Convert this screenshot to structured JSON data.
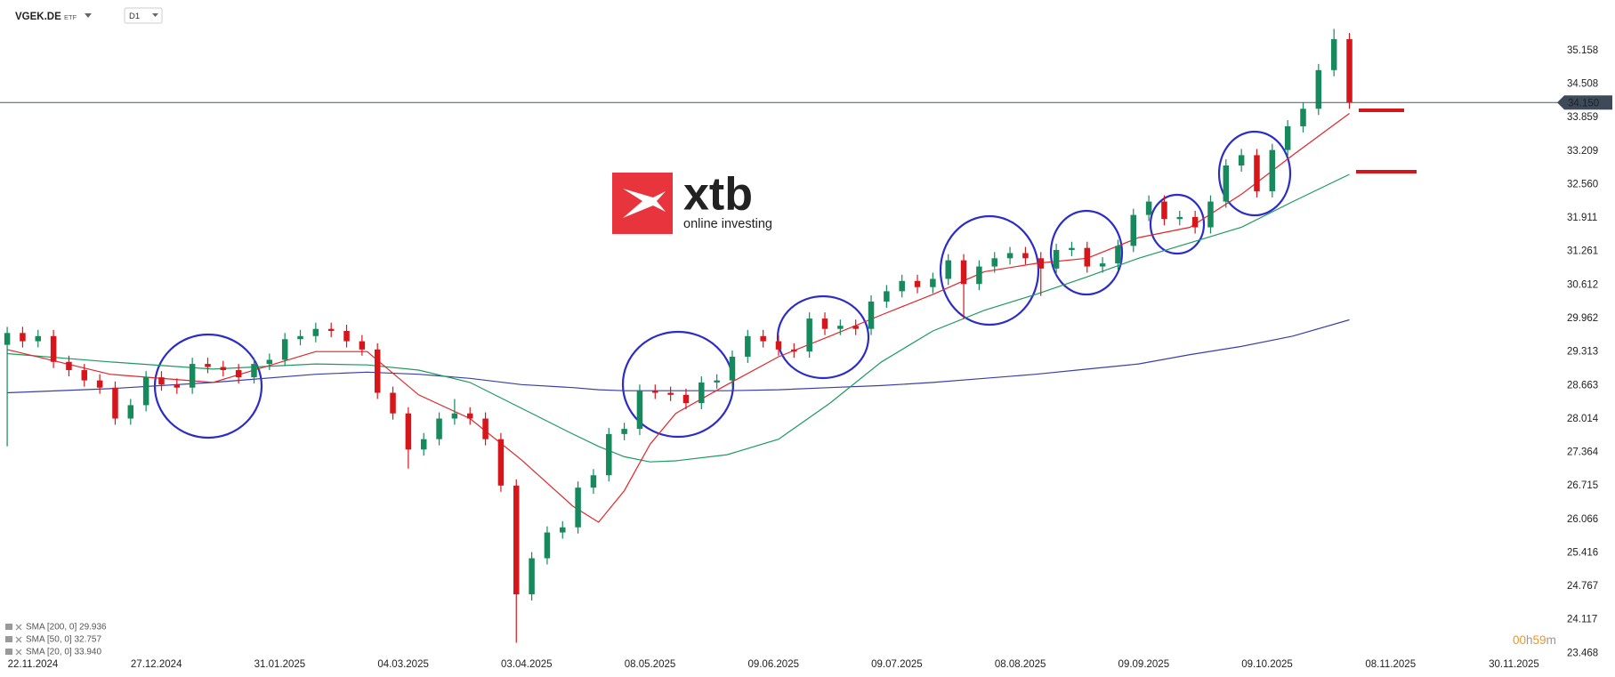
{
  "header": {
    "symbol": "VGEK.DE",
    "asset_class": "ETF",
    "interval": "D1"
  },
  "logo": {
    "brand": "xtb",
    "tagline": "online investing"
  },
  "timer": [
    "00",
    "h",
    "59",
    "m"
  ],
  "chart_data": {
    "type": "candlestick",
    "xlim": [
      -1.4,
      301.4
    ],
    "ylim": [
      23.11,
      36.14
    ],
    "xticks": [
      {
        "value": 5,
        "label": "22.11.2024"
      },
      {
        "value": 29,
        "label": "27.12.2024"
      },
      {
        "value": 53,
        "label": "31.01.2025"
      },
      {
        "value": 77,
        "label": "04.03.2025"
      },
      {
        "value": 101,
        "label": "03.04.2025"
      },
      {
        "value": 125,
        "label": "08.05.2025"
      },
      {
        "value": 149,
        "label": "09.06.2025"
      },
      {
        "value": 173,
        "label": "09.07.2025"
      },
      {
        "value": 197,
        "label": "08.08.2025"
      },
      {
        "value": 221,
        "label": "09.09.2025"
      },
      {
        "value": 245,
        "label": "09.10.2025"
      },
      {
        "value": 269,
        "label": "08.11.2025"
      },
      {
        "value": 293,
        "label": "30.11.2025"
      }
    ],
    "yticks": [
      35.158,
      34.508,
      33.859,
      33.209,
      {
        "value": 32.56,
        "label": "32.560"
      },
      31.911,
      31.261,
      30.612,
      29.962,
      29.313,
      28.663,
      28.014,
      27.364,
      26.715,
      26.066,
      25.416,
      24.767,
      24.117,
      23.468
    ],
    "grid": false,
    "current_price": {
      "value": 34.15,
      "label": "34.150"
    },
    "up_color": "#168a5c",
    "down_color": "#d7161c",
    "candles": {
      "x": [
        0,
        3,
        6,
        9,
        12,
        15,
        18,
        21,
        24,
        27,
        30,
        33,
        36,
        39,
        42,
        45,
        48,
        51,
        54,
        57,
        60,
        63,
        66,
        69,
        72,
        75,
        78,
        81,
        84,
        87,
        90,
        93,
        96,
        99,
        102,
        105,
        108,
        111,
        114,
        117,
        120,
        123,
        126,
        129,
        132,
        135,
        138,
        141,
        144,
        147,
        150,
        153,
        156,
        159,
        162,
        165,
        168,
        171,
        174,
        177,
        180,
        183,
        186,
        189,
        192,
        195,
        198,
        201,
        204,
        207,
        210,
        213,
        216,
        219,
        222,
        225,
        228,
        231,
        234,
        237,
        240,
        243,
        246,
        249,
        252,
        255,
        258,
        261
      ],
      "open": [
        29.45,
        29.68,
        29.52,
        29.62,
        29.12,
        28.96,
        28.76,
        28.62,
        28.02,
        28.28,
        28.82,
        28.68,
        28.62,
        29.08,
        29.02,
        28.96,
        28.82,
        29.08,
        29.16,
        29.56,
        29.62,
        29.76,
        29.72,
        29.52,
        29.36,
        28.52,
        28.12,
        27.42,
        27.62,
        28.02,
        28.12,
        28.02,
        27.62,
        26.72,
        24.61,
        25.31,
        25.81,
        25.91,
        26.68,
        26.92,
        27.72,
        27.82,
        28.56,
        28.52,
        28.48,
        28.32,
        28.72,
        28.76,
        29.22,
        29.62,
        29.52,
        29.36,
        29.32,
        29.96,
        29.76,
        29.82,
        29.76,
        30.29,
        30.49,
        30.69,
        30.57,
        30.73,
        31.09,
        30.63,
        30.97,
        31.13,
        31.23,
        31.13,
        30.93,
        31.29,
        31.33,
        30.97,
        31.03,
        31.37,
        31.97,
        32.23,
        31.89,
        31.93,
        31.73,
        32.23,
        32.93,
        33.13,
        32.43,
        33.23,
        33.69,
        34.03,
        34.78,
        35.38
      ],
      "high": [
        29.8,
        29.8,
        29.74,
        29.74,
        29.24,
        29.08,
        28.88,
        28.74,
        28.4,
        28.94,
        28.94,
        28.8,
        29.2,
        29.2,
        29.14,
        29.08,
        29.2,
        29.28,
        29.68,
        29.74,
        29.88,
        29.88,
        29.84,
        29.64,
        29.48,
        28.64,
        28.24,
        27.74,
        28.14,
        28.4,
        28.24,
        28.14,
        27.74,
        26.84,
        25.43,
        25.93,
        26.03,
        26.8,
        27.04,
        27.84,
        27.94,
        28.68,
        28.68,
        28.64,
        28.6,
        28.84,
        28.88,
        29.34,
        29.74,
        29.74,
        29.64,
        29.48,
        30.08,
        30.08,
        29.94,
        29.94,
        30.41,
        30.61,
        30.81,
        30.81,
        30.85,
        31.21,
        31.21,
        31.09,
        31.25,
        31.35,
        31.35,
        31.25,
        31.41,
        31.45,
        31.45,
        31.15,
        31.49,
        32.09,
        32.35,
        32.35,
        32.05,
        32.05,
        32.35,
        33.05,
        33.25,
        33.25,
        33.35,
        33.81,
        34.15,
        34.9,
        35.58,
        35.5
      ],
      "low": [
        27.48,
        29.4,
        29.4,
        29.0,
        28.84,
        28.64,
        28.5,
        27.9,
        27.9,
        28.16,
        28.56,
        28.5,
        28.5,
        28.9,
        28.84,
        28.7,
        28.7,
        28.96,
        29.04,
        29.44,
        29.5,
        29.6,
        29.4,
        29.24,
        28.4,
        28.0,
        27.05,
        27.3,
        27.5,
        27.9,
        27.9,
        27.5,
        26.6,
        23.67,
        24.49,
        25.19,
        25.69,
        25.79,
        26.56,
        26.8,
        27.6,
        27.7,
        28.4,
        28.36,
        28.2,
        28.2,
        28.6,
        28.64,
        29.1,
        29.4,
        29.24,
        29.2,
        29.2,
        29.64,
        29.64,
        29.64,
        29.64,
        30.17,
        30.37,
        30.45,
        30.45,
        30.61,
        29.95,
        30.51,
        30.85,
        31.01,
        31.01,
        30.4,
        30.81,
        31.17,
        30.85,
        30.85,
        30.91,
        31.25,
        31.85,
        31.77,
        31.77,
        31.61,
        31.61,
        32.11,
        32.81,
        32.31,
        32.31,
        33.11,
        33.57,
        33.91,
        34.66,
        34.03
      ],
      "close": [
        29.68,
        29.52,
        29.62,
        29.12,
        28.96,
        28.76,
        28.62,
        28.02,
        28.28,
        28.82,
        28.68,
        28.62,
        29.08,
        29.02,
        28.96,
        28.82,
        29.08,
        29.16,
        29.56,
        29.62,
        29.76,
        29.72,
        29.52,
        29.36,
        28.52,
        28.12,
        27.42,
        27.62,
        28.02,
        28.12,
        28.02,
        27.62,
        26.72,
        24.61,
        25.31,
        25.81,
        25.91,
        26.68,
        26.92,
        27.72,
        27.82,
        28.56,
        28.52,
        28.48,
        28.32,
        28.72,
        28.76,
        29.22,
        29.62,
        29.52,
        29.36,
        29.32,
        29.96,
        29.76,
        29.82,
        29.76,
        30.29,
        30.49,
        30.69,
        30.57,
        30.73,
        31.09,
        30.63,
        30.97,
        31.13,
        31.23,
        31.13,
        30.93,
        31.29,
        31.33,
        30.97,
        31.03,
        31.37,
        31.97,
        32.23,
        31.89,
        31.93,
        31.73,
        32.23,
        32.93,
        33.13,
        32.43,
        33.23,
        33.69,
        34.03,
        34.78,
        35.38,
        34.15
      ]
    },
    "series": [
      {
        "name": "SMA [200, 0] 29.936",
        "color": "#3a3fa8",
        "x": [
          0,
          20,
          40,
          60,
          70,
          80,
          90,
          100,
          110,
          115,
          120,
          125,
          130,
          140,
          150,
          160,
          170,
          180,
          190,
          200,
          210,
          220,
          230,
          240,
          250,
          261
        ],
        "values": [
          28.52,
          28.6,
          28.72,
          28.88,
          28.92,
          28.88,
          28.8,
          28.68,
          28.62,
          28.58,
          28.56,
          28.56,
          28.56,
          28.56,
          28.58,
          28.62,
          28.66,
          28.72,
          28.8,
          28.88,
          28.98,
          29.08,
          29.26,
          29.42,
          29.62,
          29.936
        ]
      },
      {
        "name": "SMA [50, 0] 32.757",
        "color": "#1e9a5e",
        "x": [
          0,
          20,
          40,
          60,
          70,
          80,
          90,
          100,
          110,
          115,
          120,
          125,
          130,
          140,
          150,
          160,
          170,
          180,
          190,
          200,
          210,
          220,
          230,
          240,
          250,
          261
        ],
        "values": [
          29.28,
          29.12,
          28.98,
          29.08,
          29.06,
          28.96,
          28.72,
          28.22,
          27.72,
          27.48,
          27.28,
          27.18,
          27.2,
          27.32,
          27.62,
          28.32,
          29.12,
          29.72,
          30.12,
          30.43,
          30.77,
          31.13,
          31.43,
          31.73,
          32.23,
          32.757
        ]
      },
      {
        "name": "SMA [20, 0] 33.940",
        "color": "#e0262b",
        "x": [
          0,
          20,
          40,
          60,
          70,
          80,
          90,
          100,
          110,
          115,
          120,
          125,
          130,
          140,
          150,
          160,
          170,
          180,
          190,
          200,
          210,
          220,
          230,
          240,
          250,
          261
        ],
        "values": [
          29.36,
          28.88,
          28.72,
          29.32,
          29.32,
          28.48,
          28.02,
          27.22,
          26.32,
          26.01,
          26.62,
          27.52,
          28.12,
          28.68,
          29.22,
          29.62,
          30.03,
          30.43,
          30.87,
          31.03,
          31.13,
          31.53,
          31.73,
          32.37,
          33.13,
          33.94
        ]
      }
    ]
  }
}
